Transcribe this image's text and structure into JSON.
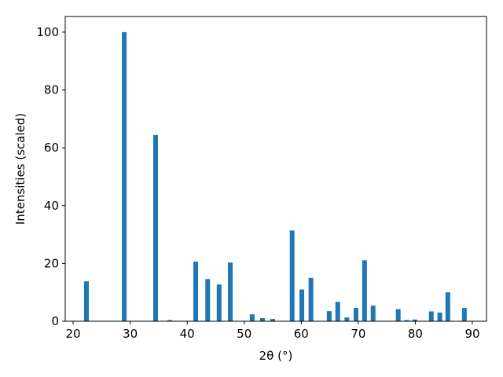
{
  "chart_data": {
    "type": "bar",
    "x": [
      22.34,
      28.96,
      34.47,
      36.95,
      41.5,
      43.6,
      45.6,
      47.56,
      51.4,
      53.2,
      55.0,
      58.4,
      60.1,
      61.7,
      64.9,
      66.4,
      68.0,
      69.6,
      71.1,
      72.6,
      77.0,
      78.5,
      79.9,
      82.8,
      84.3,
      85.7,
      88.6
    ],
    "values": [
      13.8,
      100,
      64.4,
      0.4,
      20.6,
      14.6,
      12.7,
      20.3,
      2.4,
      1.1,
      0.8,
      31.4,
      11.0,
      15.0,
      3.5,
      6.7,
      1.3,
      4.6,
      21.1,
      5.4,
      4.2,
      0.4,
      0.6,
      3.4,
      3.0,
      10.0,
      4.6
    ],
    "color": "#1f77b4",
    "xlabel": "2θ (°)",
    "ylabel": "Intensities (scaled)",
    "xlim": [
      18.62,
      92.48
    ],
    "xticks": [
      20,
      30,
      40,
      50,
      60,
      70,
      80,
      90
    ],
    "ylim": [
      0,
      105.4
    ],
    "yticks": [
      0,
      20,
      40,
      60,
      80,
      100
    ],
    "grid": false
  }
}
